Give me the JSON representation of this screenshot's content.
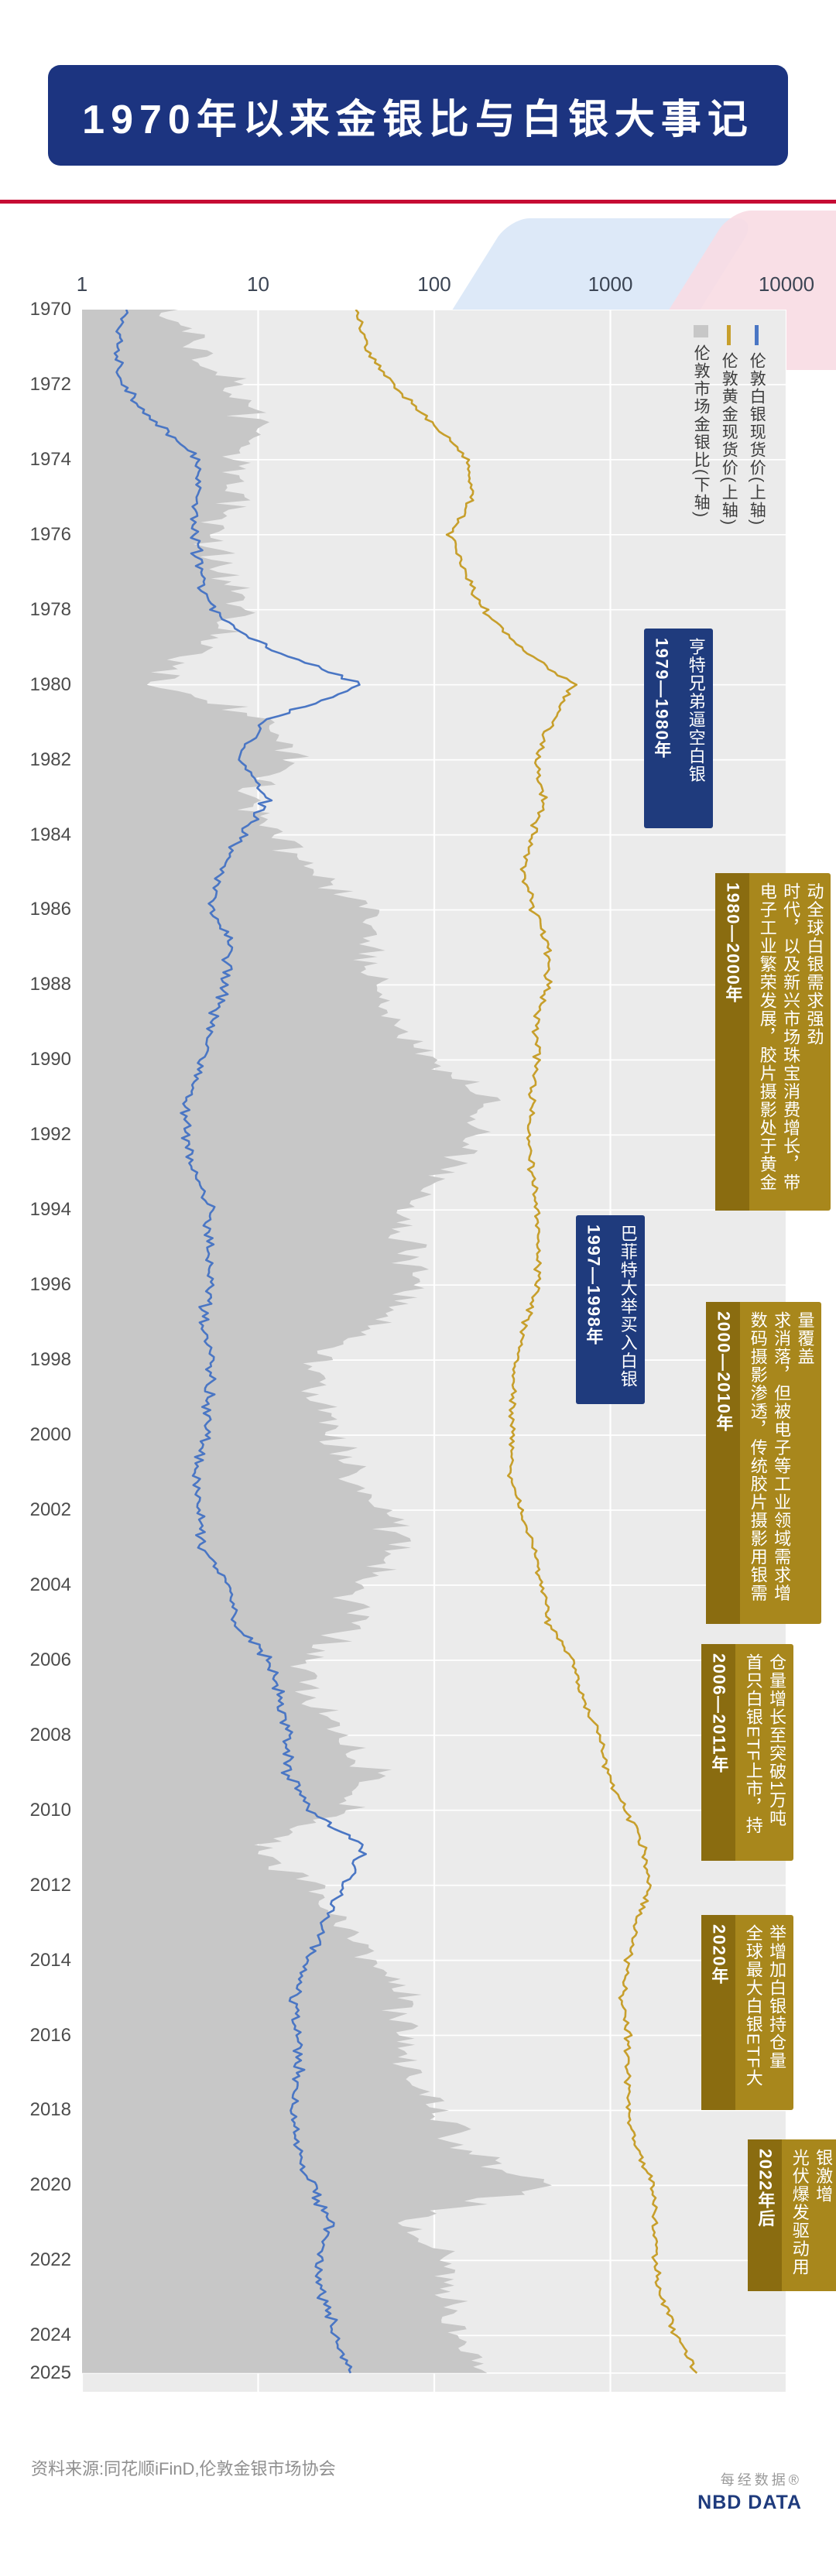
{
  "header": {
    "title": "1970年以来金银比与白银大事记"
  },
  "legend": [
    {
      "label": "伦敦市场金银比(下轴)",
      "swatch": "gray-area",
      "color": "#c7c7c7"
    },
    {
      "label": "伦敦黄金现货价(上轴)",
      "swatch": "gold-line",
      "color": "#c79f2c"
    },
    {
      "label": "伦敦白银现货价(上轴)",
      "swatch": "blue-line",
      "color": "#4a76c4"
    }
  ],
  "annotations": [
    {
      "period": "1979—1980年",
      "text": "亨特兄弟逼空白银",
      "style": "navy"
    },
    {
      "period": "1980—2000年",
      "text": "电子工业繁荣发展，胶片摄影处于黄金时代，以及新兴市场珠宝消费增长，带动全球白银需求强劲",
      "style": "gold"
    },
    {
      "period": "1997—1998年",
      "text": "巴菲特大举买入白银",
      "style": "navy"
    },
    {
      "period": "2000—2010年",
      "text": "数码摄影渗透，传统胶片摄影用银需求消落，但被电子等工业领域需求增量覆盖",
      "style": "gold"
    },
    {
      "period": "2006—2011年",
      "text": "首只白银ETF上市，持仓量增长至突破1万吨",
      "style": "gold"
    },
    {
      "period": "2020年",
      "text": "全球最大白银ETF大举增加白银持仓量",
      "style": "gold"
    },
    {
      "period": "2022年后",
      "text": "光伏爆发驱动用银激增",
      "style": "gold"
    }
  ],
  "footer": {
    "source": "资料来源:同花顺iFinD,伦敦金银市场协会",
    "brand_cn": "每经数据®",
    "brand_en": "NBD DATA"
  },
  "chart_data": {
    "type": "line",
    "title": "1970年以来金银比与白银大事记",
    "orientation": "time-on-vertical-axis",
    "x_axis": {
      "position": "top",
      "scale": "log",
      "min": 1,
      "max": 10000,
      "ticks": [
        1,
        10,
        100,
        1000,
        10000
      ],
      "tick_labels": [
        "1",
        "10",
        "100",
        "1000",
        "10000"
      ]
    },
    "y_axis": {
      "unit": "year",
      "start": 1970,
      "end": 2025,
      "ticks": [
        1970,
        1972,
        1974,
        1976,
        1978,
        1980,
        1982,
        1984,
        1986,
        1988,
        1990,
        1992,
        1994,
        1996,
        1998,
        2000,
        2002,
        2004,
        2006,
        2008,
        2010,
        2012,
        2014,
        2016,
        2018,
        2020,
        2022,
        2024,
        2025
      ]
    },
    "ratio_axis": {
      "position": "bottom",
      "scale": "linear",
      "min": 0,
      "max": 160,
      "labels_visible": false
    },
    "year_start": 1970,
    "year_step": 1,
    "grid": true,
    "plot_background": "#ebebeb",
    "series": [
      {
        "name": "伦敦市场金银比(下轴)",
        "type": "area",
        "axis": "bottom",
        "color": "#c7c7c7",
        "values": [
          20,
          26,
          35,
          38,
          34,
          36,
          29,
          32,
          36,
          28,
          16,
          44,
          48,
          37,
          45,
          52,
          67,
          64,
          67,
          69,
          80,
          91,
          88,
          84,
          72,
          74,
          75,
          68,
          53,
          54,
          56,
          62,
          67,
          74,
          61,
          61,
          52,
          52,
          58,
          66,
          61,
          39,
          54,
          59,
          66,
          74,
          73,
          74,
          81,
          86,
          104,
          72,
          83,
          83,
          84,
          92
        ]
      },
      {
        "name": "伦敦黄金现货价(上轴)",
        "type": "line",
        "axis": "top",
        "color": "#c79f2c",
        "values": [
          36,
          41,
          58,
          97,
          159,
          161,
          125,
          148,
          193,
          306,
          615,
          460,
          376,
          424,
          361,
          317,
          368,
          447,
          437,
          381,
          384,
          362,
          344,
          360,
          384,
          384,
          388,
          331,
          294,
          279,
          279,
          271,
          310,
          363,
          410,
          445,
          603,
          695,
          872,
          972,
          1225,
          1572,
          1669,
          1411,
          1266,
          1160,
          1251,
          1257,
          1268,
          1393,
          1770,
          1799,
          1801,
          1943,
          2389,
          3100
        ]
      },
      {
        "name": "伦敦白银现货价(上轴)",
        "type": "line",
        "axis": "top",
        "color": "#4a76c4",
        "values": [
          1.77,
          1.55,
          1.68,
          2.56,
          4.71,
          4.42,
          4.35,
          4.62,
          5.4,
          11.1,
          40,
          10.5,
          7.9,
          11.4,
          8.1,
          6.1,
          5.5,
          7.0,
          6.5,
          5.5,
          4.8,
          4.0,
          3.9,
          4.3,
          5.3,
          5.2,
          5.2,
          4.9,
          5.5,
          5.2,
          5.0,
          4.4,
          4.6,
          4.9,
          6.7,
          7.3,
          11.5,
          13.4,
          15.0,
          14.7,
          20.2,
          40,
          31.1,
          23.8,
          19.1,
          15.7,
          17.1,
          17.0,
          15.7,
          16.2,
          20.5,
          25.1,
          21.8,
          23.4,
          28.3,
          33.5
        ]
      }
    ]
  }
}
